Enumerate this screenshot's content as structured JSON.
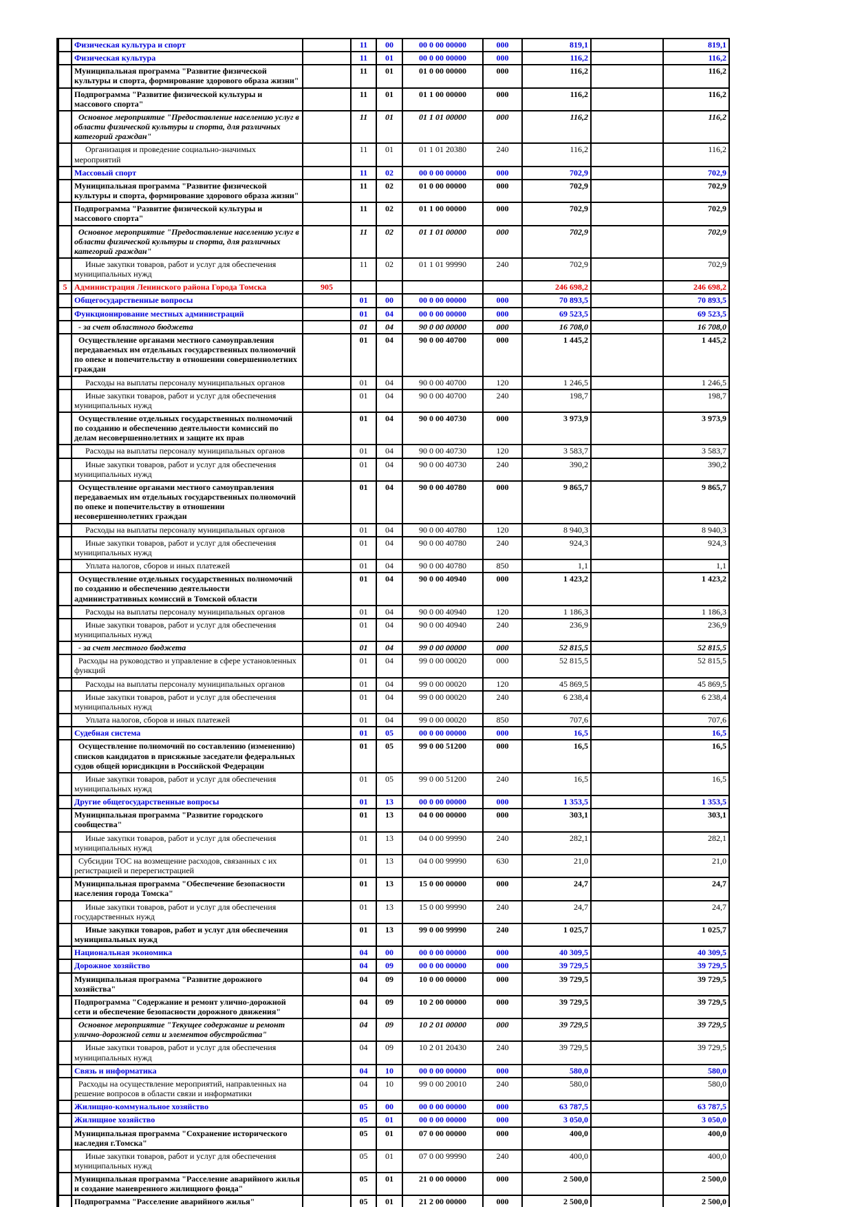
{
  "colors": {
    "section_blue": "#0000d9",
    "agency_red": "#e00000",
    "grid": "#000000"
  },
  "table": {
    "rows": [
      {
        "num": "",
        "name": "Физическая культура и спорт",
        "code": "",
        "rz": "11",
        "pr": "00",
        "csr": "00 0 00 00000",
        "vr": "000",
        "s1": "819,1",
        "s2": "819,1",
        "style": "section",
        "ind": 0
      },
      {
        "num": "",
        "name": "Физическая культура",
        "code": "",
        "rz": "11",
        "pr": "01",
        "csr": "00 0 00 00000",
        "vr": "000",
        "s1": "116,2",
        "s2": "116,2",
        "style": "section",
        "ind": 0
      },
      {
        "num": "",
        "name": "Муниципальная программа \"Развитие физической культуры и спорта, формирование здорового образа жизни\"",
        "code": "",
        "rz": "11",
        "pr": "01",
        "csr": "01 0 00 00000",
        "vr": "000",
        "s1": "116,2",
        "s2": "116,2",
        "style": "program flat",
        "ind": 0
      },
      {
        "num": "",
        "name": "Подпрограмма \"Развитие физической культуры и массового спорта\"",
        "code": "",
        "rz": "11",
        "pr": "01",
        "csr": "01 1 00 00000",
        "vr": "000",
        "s1": "116,2",
        "s2": "116,2",
        "style": "program flat",
        "ind": 0
      },
      {
        "num": "",
        "name": "Основное мероприятие \"Предоставление населению услуг в области физической культуры и спорта, для различных категорий граждан\"",
        "code": "",
        "rz": "11",
        "pr": "01",
        "csr": "01 1 01 00000",
        "vr": "000",
        "s1": "116,2",
        "s2": "116,2",
        "style": "event flat",
        "ind": 1
      },
      {
        "num": "",
        "name": "Организация и проведение социально-значимых мероприятий",
        "code": "",
        "rz": "11",
        "pr": "01",
        "csr": "01 1 01 20380",
        "vr": "240",
        "s1": "116,2",
        "s2": "116,2",
        "style": "detail",
        "ind": 2
      },
      {
        "num": "",
        "name": "Массовый спорт",
        "code": "",
        "rz": "11",
        "pr": "02",
        "csr": "00 0 00 00000",
        "vr": "000",
        "s1": "702,9",
        "s2": "702,9",
        "style": "section",
        "ind": 0
      },
      {
        "num": "",
        "name": "Муниципальная программа \"Развитие физической культуры и спорта, формирование здорового образа жизни\"",
        "code": "",
        "rz": "11",
        "pr": "02",
        "csr": "01 0 00 00000",
        "vr": "000",
        "s1": "702,9",
        "s2": "702,9",
        "style": "program flat",
        "ind": 0
      },
      {
        "num": "",
        "name": "Подпрограмма \"Развитие физической культуры и массового спорта\"",
        "code": "",
        "rz": "11",
        "pr": "02",
        "csr": "01 1 00 00000",
        "vr": "000",
        "s1": "702,9",
        "s2": "702,9",
        "style": "program flat",
        "ind": 0
      },
      {
        "num": "",
        "name": "Основное мероприятие \"Предоставление населению услуг в области физической культуры и спорта, для различных категорий граждан\"",
        "code": "",
        "rz": "11",
        "pr": "02",
        "csr": "01 1 01 00000",
        "vr": "000",
        "s1": "702,9",
        "s2": "702,9",
        "style": "event flat",
        "ind": 1
      },
      {
        "num": "",
        "name": "Иные закупки товаров, работ и услуг для обеспечения муниципальных нужд",
        "code": "",
        "rz": "11",
        "pr": "02",
        "csr": "01 1 01 99990",
        "vr": "240",
        "s1": "702,9",
        "s2": "702,9",
        "style": "detail",
        "ind": 2
      },
      {
        "num": "5",
        "name": "Администрация Ленинского района Города Томска",
        "code": "905",
        "rz": "",
        "pr": "",
        "csr": "",
        "vr": "",
        "s1": "246 698,2",
        "s2": "246 698,2",
        "style": "agency",
        "ind": 0
      },
      {
        "num": "",
        "name": "Общегосударственные вопросы",
        "code": "",
        "rz": "01",
        "pr": "00",
        "csr": "00 0 00 00000",
        "vr": "000",
        "s1": "70 893,5",
        "s2": "70 893,5",
        "style": "section",
        "ind": 0
      },
      {
        "num": "",
        "name": "Функционирование местных администраций",
        "code": "",
        "rz": "01",
        "pr": "04",
        "csr": "00 0 00 00000",
        "vr": "000",
        "s1": "69 523,5",
        "s2": "69 523,5",
        "style": "section",
        "ind": 0
      },
      {
        "num": "",
        "name": "- за счет областного бюджета",
        "code": "",
        "rz": "01",
        "pr": "04",
        "csr": "90 0 00 00000",
        "vr": "000",
        "s1": "16 708,0",
        "s2": "16 708,0",
        "style": "src",
        "ind": 1
      },
      {
        "num": "",
        "name": "Осуществление органами местного самоуправления передаваемых им отдельных государственных полномочий по опеке и попечительству в отношении совершеннолетних граждан",
        "code": "",
        "rz": "01",
        "pr": "04",
        "csr": "90 0 00 40700",
        "vr": "000",
        "s1": "1 445,2",
        "s2": "1 445,2",
        "style": "entry",
        "ind": 1
      },
      {
        "num": "",
        "name": "Расходы на выплаты персоналу муниципальных органов",
        "code": "",
        "rz": "01",
        "pr": "04",
        "csr": "90 0 00 40700",
        "vr": "120",
        "s1": "1 246,5",
        "s2": "1 246,5",
        "style": "detail",
        "ind": 2
      },
      {
        "num": "",
        "name": "Иные закупки товаров, работ и услуг для обеспечения муниципальных нужд",
        "code": "",
        "rz": "01",
        "pr": "04",
        "csr": "90 0 00 40700",
        "vr": "240",
        "s1": "198,7",
        "s2": "198,7",
        "style": "detail",
        "ind": 2
      },
      {
        "num": "",
        "name": "Осуществление отдельных государственных полномочий по созданию и обеспечению деятельности комиссий по делам несовершеннолетних и защите их прав",
        "code": "",
        "rz": "01",
        "pr": "04",
        "csr": "90 0 00 40730",
        "vr": "000",
        "s1": "3 973,9",
        "s2": "3 973,9",
        "style": "entry",
        "ind": 1
      },
      {
        "num": "",
        "name": "Расходы на выплаты персоналу муниципальных органов",
        "code": "",
        "rz": "01",
        "pr": "04",
        "csr": "90 0 00 40730",
        "vr": "120",
        "s1": "3 583,7",
        "s2": "3 583,7",
        "style": "detail",
        "ind": 2
      },
      {
        "num": "",
        "name": "Иные закупки товаров, работ и услуг для обеспечения муниципальных нужд",
        "code": "",
        "rz": "01",
        "pr": "04",
        "csr": "90 0 00 40730",
        "vr": "240",
        "s1": "390,2",
        "s2": "390,2",
        "style": "detail pad",
        "ind": 2
      },
      {
        "num": "",
        "name": "Осуществление органами местного самоуправления передаваемых им отдельных государственных полномочий по опеке и попечительству в отношении несовершеннолетних граждан",
        "code": "",
        "rz": "01",
        "pr": "04",
        "csr": "90 0 00 40780",
        "vr": "000",
        "s1": "9 865,7",
        "s2": "9 865,7",
        "style": "entry",
        "ind": 1
      },
      {
        "num": "",
        "name": "Расходы на выплаты персоналу муниципальных органов",
        "code": "",
        "rz": "01",
        "pr": "04",
        "csr": "90 0 00 40780",
        "vr": "120",
        "s1": "8 940,3",
        "s2": "8 940,3",
        "style": "detail",
        "ind": 2
      },
      {
        "num": "",
        "name": "Иные закупки товаров, работ и услуг для обеспечения муниципальных нужд",
        "code": "",
        "rz": "01",
        "pr": "04",
        "csr": "90 0 00 40780",
        "vr": "240",
        "s1": "924,3",
        "s2": "924,3",
        "style": "detail",
        "ind": 2
      },
      {
        "num": "",
        "name": "Уплата налогов, сборов и иных платежей",
        "code": "",
        "rz": "01",
        "pr": "04",
        "csr": "90 0 00 40780",
        "vr": "850",
        "s1": "1,1",
        "s2": "1,1",
        "style": "detail",
        "ind": 2
      },
      {
        "num": "",
        "name": "Осуществление отдельных государственных полномочий по созданию и обеспечению деятельности административных комиссий в Томской области",
        "code": "",
        "rz": "01",
        "pr": "04",
        "csr": "90 0 00 40940",
        "vr": "000",
        "s1": "1 423,2",
        "s2": "1 423,2",
        "style": "entry flat",
        "ind": 1
      },
      {
        "num": "",
        "name": "Расходы на выплаты персоналу муниципальных органов",
        "code": "",
        "rz": "01",
        "pr": "04",
        "csr": "90 0 00 40940",
        "vr": "120",
        "s1": "1 186,3",
        "s2": "1 186,3",
        "style": "detail",
        "ind": 2
      },
      {
        "num": "",
        "name": "Иные закупки товаров, работ и услуг для обеспечения муниципальных нужд",
        "code": "",
        "rz": "01",
        "pr": "04",
        "csr": "90 0 00 40940",
        "vr": "240",
        "s1": "236,9",
        "s2": "236,9",
        "style": "detail",
        "ind": 2
      },
      {
        "num": "",
        "name": "- за счет местного бюджета",
        "code": "",
        "rz": "01",
        "pr": "04",
        "csr": "99 0 00 00000",
        "vr": "000",
        "s1": "52 815,5",
        "s2": "52 815,5",
        "style": "src",
        "ind": 1
      },
      {
        "num": "",
        "name": "Расходы на руководство и управление в сфере установленных функций",
        "code": "",
        "rz": "01",
        "pr": "04",
        "csr": "99 0 00 00020",
        "vr": "000",
        "s1": "52 815,5",
        "s2": "52 815,5",
        "style": "detail",
        "ind": 1
      },
      {
        "num": "",
        "name": "Расходы на выплаты персоналу муниципальных органов",
        "code": "",
        "rz": "01",
        "pr": "04",
        "csr": "99 0 00 00020",
        "vr": "120",
        "s1": "45 869,5",
        "s2": "45 869,5",
        "style": "detail",
        "ind": 2
      },
      {
        "num": "",
        "name": "Иные закупки товаров, работ и услуг для обеспечения муниципальных нужд",
        "code": "",
        "rz": "01",
        "pr": "04",
        "csr": "99 0 00 00020",
        "vr": "240",
        "s1": "6 238,4",
        "s2": "6 238,4",
        "style": "detail",
        "ind": 2
      },
      {
        "num": "",
        "name": "Уплата налогов, сборов и иных платежей",
        "code": "",
        "rz": "01",
        "pr": "04",
        "csr": "99 0 00 00020",
        "vr": "850",
        "s1": "707,6",
        "s2": "707,6",
        "style": "detail",
        "ind": 2
      },
      {
        "num": "",
        "name": "Судебная система",
        "code": "",
        "rz": "01",
        "pr": "05",
        "csr": "00 0 00 00000",
        "vr": "000",
        "s1": "16,5",
        "s2": "16,5",
        "style": "section",
        "ind": 0
      },
      {
        "num": "",
        "name": "Осуществление полномочий по составлению (изменению) списков кандидатов в присяжные заседатели федеральных судов общей юрисдикции в Российской Федерации",
        "code": "",
        "rz": "01",
        "pr": "05",
        "csr": "99 0 00 51200",
        "vr": "000",
        "s1": "16,5",
        "s2": "16,5",
        "style": "entry flat",
        "ind": 1
      },
      {
        "num": "",
        "name": "Иные закупки товаров, работ и услуг для обеспечения муниципальных нужд",
        "code": "",
        "rz": "01",
        "pr": "05",
        "csr": "99 0 00 51200",
        "vr": "240",
        "s1": "16,5",
        "s2": "16,5",
        "style": "detail pad",
        "ind": 2
      },
      {
        "num": "",
        "name": "Другие общегосударственные вопросы",
        "code": "",
        "rz": "01",
        "pr": "13",
        "csr": "00 0 00 00000",
        "vr": "000",
        "s1": "1 353,5",
        "s2": "1 353,5",
        "style": "section",
        "ind": 0
      },
      {
        "num": "",
        "name": "Муниципальная программа \"Развитие городского сообщества\"",
        "code": "",
        "rz": "01",
        "pr": "13",
        "csr": "04 0 00 00000",
        "vr": "000",
        "s1": "303,1",
        "s2": "303,1",
        "style": "program",
        "ind": 0
      },
      {
        "num": "",
        "name": "Иные закупки товаров, работ и услуг для обеспечения муниципальных нужд",
        "code": "",
        "rz": "01",
        "pr": "13",
        "csr": "04 0 00 99990",
        "vr": "240",
        "s1": "282,1",
        "s2": "282,1",
        "style": "detail",
        "ind": 2
      },
      {
        "num": "",
        "name": "Субсидии ТОС на возмещение расходов, связанных с их регистрацией и перерегистрацией",
        "code": "",
        "rz": "01",
        "pr": "13",
        "csr": "04 0 00 99990",
        "vr": "630",
        "s1": "21,0",
        "s2": "21,0",
        "style": "detail",
        "ind": 1
      },
      {
        "num": "",
        "name": "Муниципальная программа \"Обеспечение безопасности населения города Томска\"",
        "code": "",
        "rz": "01",
        "pr": "13",
        "csr": "15 0 00 00000",
        "vr": "000",
        "s1": "24,7",
        "s2": "24,7",
        "style": "program flat",
        "ind": 0
      },
      {
        "num": "",
        "name": "Иные закупки товаров, работ и услуг для обеспечения государственных нужд",
        "code": "",
        "rz": "01",
        "pr": "13",
        "csr": "15 0 00 99990",
        "vr": "240",
        "s1": "24,7",
        "s2": "24,7",
        "style": "detail",
        "ind": 2
      },
      {
        "num": "",
        "name": "Иные закупки товаров, работ и услуг для обеспечения муниципальных нужд",
        "code": "",
        "rz": "01",
        "pr": "13",
        "csr": "99 0 00 99990",
        "vr": "240",
        "s1": "1 025,7",
        "s2": "1 025,7",
        "style": "entry flat",
        "ind": 2
      },
      {
        "num": "",
        "name": "Национальная экономика",
        "code": "",
        "rz": "04",
        "pr": "00",
        "csr": "00 0 00 00000",
        "vr": "000",
        "s1": "40 309,5",
        "s2": "40 309,5",
        "style": "section",
        "ind": 0
      },
      {
        "num": "",
        "name": "Дорожное хозяйство",
        "code": "",
        "rz": "04",
        "pr": "09",
        "csr": "00 0 00 00000",
        "vr": "000",
        "s1": "39 729,5",
        "s2": "39 729,5",
        "style": "section",
        "ind": 0
      },
      {
        "num": "",
        "name": "Муниципальная программа \"Развитие дорожного хозяйства\"",
        "code": "",
        "rz": "04",
        "pr": "09",
        "csr": "10 0 00 00000",
        "vr": "000",
        "s1": "39 729,5",
        "s2": "39 729,5",
        "style": "program",
        "ind": 0
      },
      {
        "num": "",
        "name": "Подпрограмма \"Содержание и ремонт улично-дорожной сети и обеспечение безопасности дорожного движения\"",
        "code": "",
        "rz": "04",
        "pr": "09",
        "csr": "10 2 00 00000",
        "vr": "000",
        "s1": "39 729,5",
        "s2": "39 729,5",
        "style": "program flat",
        "ind": 0
      },
      {
        "num": "",
        "name": "Основное мероприятие \"Текущее содержание и ремонт улично-дорожной сети и элементов обустройства\"",
        "code": "",
        "rz": "04",
        "pr": "09",
        "csr": "10 2 01 00000",
        "vr": "000",
        "s1": "39 729,5",
        "s2": "39 729,5",
        "style": "event flat",
        "ind": 1
      },
      {
        "num": "",
        "name": "Иные закупки товаров, работ и услуг для обеспечения муниципальных нужд",
        "code": "",
        "rz": "04",
        "pr": "09",
        "csr": "10 2 01 20430",
        "vr": "240",
        "s1": "39 729,5",
        "s2": "39 729,5",
        "style": "detail pad",
        "ind": 2
      },
      {
        "num": "",
        "name": "Связь и информатика",
        "code": "",
        "rz": "04",
        "pr": "10",
        "csr": "00 0 00 00000",
        "vr": "000",
        "s1": "580,0",
        "s2": "580,0",
        "style": "section",
        "ind": 0
      },
      {
        "num": "",
        "name": "Расходы на осуществление мероприятий, направленных на решение вопросов в области связи и информатики",
        "code": "",
        "rz": "04",
        "pr": "10",
        "csr": "99 0 00 20010",
        "vr": "240",
        "s1": "580,0",
        "s2": "580,0",
        "style": "detail",
        "ind": 1
      },
      {
        "num": "",
        "name": "Жилищно-коммунальное хозяйство",
        "code": "",
        "rz": "05",
        "pr": "00",
        "csr": "00 0 00 00000",
        "vr": "000",
        "s1": "63 787,5",
        "s2": "63 787,5",
        "style": "section",
        "ind": 0
      },
      {
        "num": "",
        "name": "Жилищное хозяйство",
        "code": "",
        "rz": "05",
        "pr": "01",
        "csr": "00 0 00 00000",
        "vr": "000",
        "s1": "3 050,0",
        "s2": "3 050,0",
        "style": "section",
        "ind": 0
      },
      {
        "num": "",
        "name": "Муниципальная программа \"Сохранение исторического наследия г.Томска\"",
        "code": "",
        "rz": "05",
        "pr": "01",
        "csr": "07 0 00 00000",
        "vr": "000",
        "s1": "400,0",
        "s2": "400,0",
        "style": "program flat",
        "ind": 0
      },
      {
        "num": "",
        "name": "Иные закупки товаров, работ и услуг для обеспечения муниципальных нужд",
        "code": "",
        "rz": "05",
        "pr": "01",
        "csr": "07 0 00 99990",
        "vr": "240",
        "s1": "400,0",
        "s2": "400,0",
        "style": "detail pad",
        "ind": 2
      },
      {
        "num": "",
        "name": "Муниципальная программа \"Расселение аварийного жилья и создание маневренного жилищного фонда\"",
        "code": "",
        "rz": "05",
        "pr": "01",
        "csr": "21 0 00 00000",
        "vr": "000",
        "s1": "2 500,0",
        "s2": "2 500,0",
        "style": "program flat",
        "ind": 0
      },
      {
        "num": "",
        "name": "Подпрограмма \"Расселение аварийного жилья\"",
        "code": "",
        "rz": "05",
        "pr": "01",
        "csr": "21 2 00 00000",
        "vr": "000",
        "s1": "2 500,0",
        "s2": "2 500,0",
        "style": "program",
        "ind": 0
      }
    ]
  }
}
